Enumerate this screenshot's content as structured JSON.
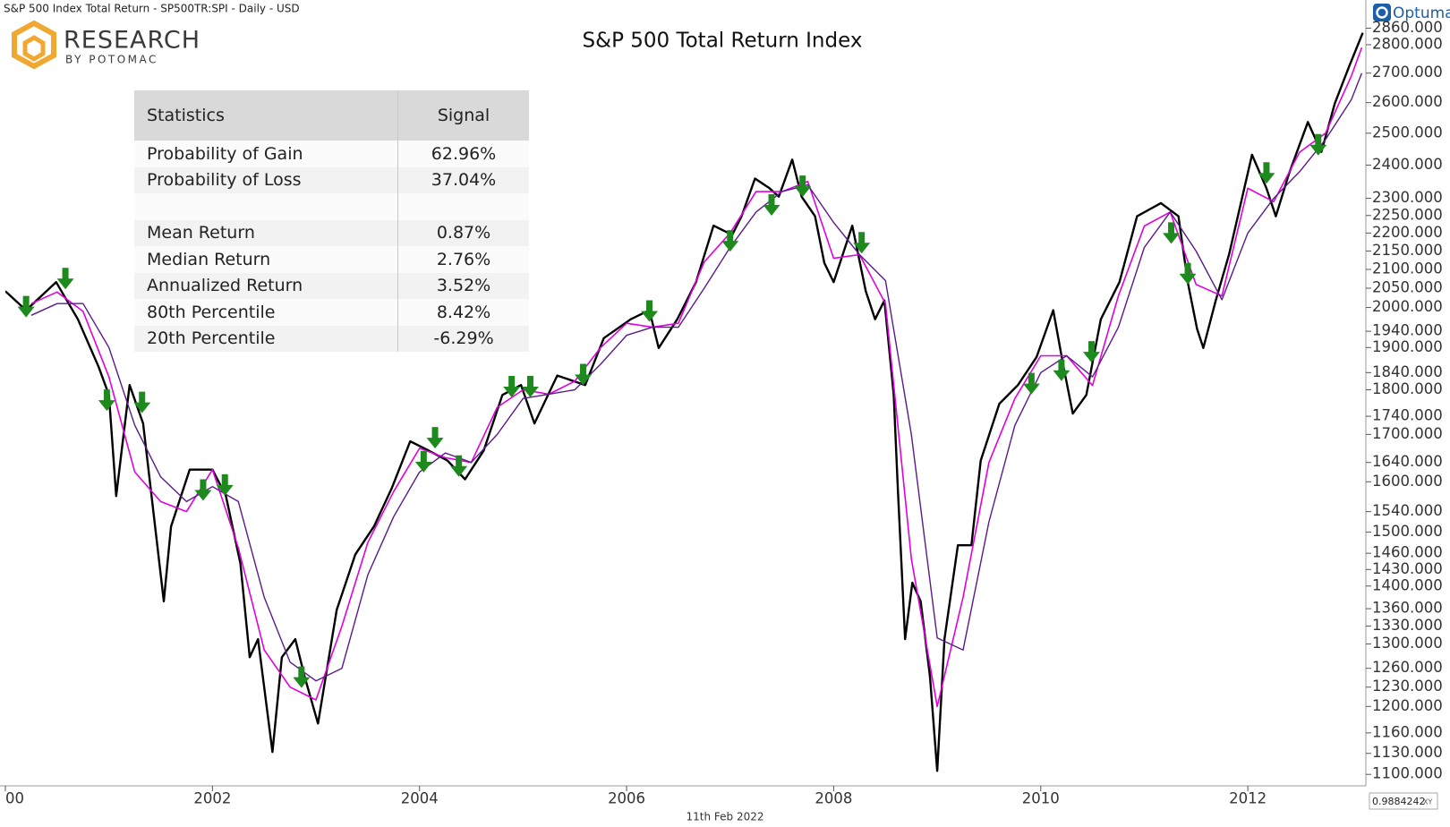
{
  "header": {
    "text": "S&P 500 Index Total Return - SP500TR:SPI - Daily - USD"
  },
  "logo": {
    "name": "RESEARCH",
    "tagline": "BY POTOMAC"
  },
  "brand": "Optuma",
  "footer": {
    "date": "11th Feb 2022",
    "scale": "0.9884242",
    "mode": "XY"
  },
  "table": {
    "columns": [
      "Statistics",
      "Signal"
    ],
    "rows": [
      [
        "Probability of Gain",
        "62.96%"
      ],
      [
        "Probability of Loss",
        "37.04%"
      ],
      [
        "Mean Return",
        "0.87%"
      ],
      [
        "Median Return",
        "2.76%"
      ],
      [
        "Annualized Return",
        "3.52%"
      ],
      [
        "80th Percentile",
        "8.42%"
      ],
      [
        "20th Percentile",
        "-6.29%"
      ]
    ]
  },
  "chart_data": {
    "type": "line",
    "title": "S&P 500 Total Return Index",
    "log_scale": true,
    "grid": false,
    "xlim": [
      2000.0,
      2013.14
    ],
    "ylim": [
      1084,
      2965
    ],
    "xticks": [
      {
        "value": 2000,
        "label": "00"
      },
      2002,
      2004,
      2006,
      2008,
      2010,
      2012
    ],
    "yticks": [
      {
        "value": 2860,
        "label": "2860.000"
      },
      {
        "value": 2800,
        "label": "2800.000"
      },
      {
        "value": 2700,
        "label": "2700.000"
      },
      {
        "value": 2600,
        "label": "2600.000"
      },
      {
        "value": 2500,
        "label": "2500.000"
      },
      {
        "value": 2400,
        "label": "2400.000"
      },
      {
        "value": 2300,
        "label": "2300.000"
      },
      {
        "value": 2250,
        "label": "2250.000"
      },
      {
        "value": 2200,
        "label": "2200.000"
      },
      {
        "value": 2150,
        "label": "2150.000"
      },
      {
        "value": 2100,
        "label": "2100.000"
      },
      {
        "value": 2050,
        "label": "2050.000"
      },
      {
        "value": 2000,
        "label": "2000.000"
      },
      {
        "value": 1940,
        "label": "1940.000"
      },
      {
        "value": 1900,
        "label": "1900.000"
      },
      {
        "value": 1840,
        "label": "1840.000"
      },
      {
        "value": 1800,
        "label": "1800.000"
      },
      {
        "value": 1740,
        "label": "1740.000"
      },
      {
        "value": 1700,
        "label": "1700.000"
      },
      {
        "value": 1640,
        "label": "1640.000"
      },
      {
        "value": 1600,
        "label": "1600.000"
      },
      {
        "value": 1540,
        "label": "1540.000"
      },
      {
        "value": 1500,
        "label": "1500.000"
      },
      {
        "value": 1460,
        "label": "1460.000"
      },
      {
        "value": 1430,
        "label": "1430.000"
      },
      {
        "value": 1400,
        "label": "1400.000"
      },
      {
        "value": 1360,
        "label": "1360.000"
      },
      {
        "value": 1330,
        "label": "1330.000"
      },
      {
        "value": 1300,
        "label": "1300.000"
      },
      {
        "value": 1260,
        "label": "1260.000"
      },
      {
        "value": 1230,
        "label": "1230.000"
      },
      {
        "value": 1200,
        "label": "1200.000"
      },
      {
        "value": 1160,
        "label": "1160.000"
      },
      {
        "value": 1130,
        "label": "1130.000"
      },
      {
        "value": 1100,
        "label": "1100.000"
      }
    ],
    "series": [
      {
        "color": "#000000",
        "width": 2.4,
        "x": [
          2000.0,
          2000.2,
          2000.49,
          2000.7,
          2000.9,
          2001.0,
          2001.07,
          2001.2,
          2001.33,
          2001.53,
          2001.6,
          2001.78,
          2002.0,
          2002.13,
          2002.27,
          2002.36,
          2002.44,
          2002.58,
          2002.67,
          2002.8,
          2002.89,
          2003.02,
          2003.2,
          2003.38,
          2003.56,
          2003.73,
          2003.91,
          2004.09,
          2004.27,
          2004.44,
          2004.62,
          2004.8,
          2004.98,
          2005.11,
          2005.33,
          2005.6,
          2005.78,
          2006.04,
          2006.22,
          2006.31,
          2006.49,
          2006.67,
          2006.84,
          2007.02,
          2007.11,
          2007.24,
          2007.38,
          2007.47,
          2007.6,
          2007.69,
          2007.82,
          2007.91,
          2008.0,
          2008.18,
          2008.31,
          2008.4,
          2008.49,
          2008.58,
          2008.62,
          2008.69,
          2008.76,
          2008.84,
          2008.93,
          2009.0,
          2009.07,
          2009.2,
          2009.33,
          2009.42,
          2009.6,
          2009.78,
          2009.96,
          2010.12,
          2010.22,
          2010.31,
          2010.44,
          2010.58,
          2010.76,
          2010.93,
          2011.16,
          2011.33,
          2011.42,
          2011.51,
          2011.57,
          2011.69,
          2011.82,
          2012.04,
          2012.18,
          2012.27,
          2012.4,
          2012.58,
          2012.71,
          2012.84,
          2012.98,
          2013.11
        ],
        "values": [
          2042,
          1993,
          2066,
          1970,
          1854,
          1788,
          1571,
          1811,
          1724,
          1373,
          1511,
          1625,
          1625,
          1571,
          1441,
          1278,
          1308,
          1132,
          1278,
          1308,
          1247,
          1174,
          1358,
          1458,
          1511,
          1586,
          1685,
          1665,
          1644,
          1605,
          1665,
          1788,
          1811,
          1724,
          1833,
          1811,
          1923,
          1970,
          1993,
          1899,
          1970,
          2066,
          2221,
          2195,
          2248,
          2359,
          2330,
          2305,
          2417,
          2305,
          2248,
          2117,
          2066,
          2221,
          2042,
          1970,
          2018,
          1788,
          1586,
          1308,
          1406,
          1373,
          1247,
          1105,
          1308,
          1475,
          1475,
          1644,
          1768,
          1811,
          1877,
          1993,
          1854,
          1746,
          1788,
          1970,
          2066,
          2248,
          2286,
          2248,
          2066,
          1946,
          1899,
          2018,
          2142,
          2432,
          2330,
          2248,
          2376,
          2536,
          2441,
          2597,
          2725,
          2843
        ]
      },
      {
        "color": "#e000e0",
        "width": 1.6,
        "x": [
          2000.25,
          2000.5,
          2000.75,
          2001.0,
          2001.25,
          2001.5,
          2001.75,
          2002.0,
          2002.25,
          2002.5,
          2002.75,
          2003.0,
          2003.25,
          2003.5,
          2003.75,
          2004.0,
          2004.25,
          2004.5,
          2004.75,
          2005.0,
          2005.25,
          2005.5,
          2005.75,
          2006.0,
          2006.25,
          2006.5,
          2006.75,
          2007.0,
          2007.25,
          2007.5,
          2007.75,
          2008.0,
          2008.25,
          2008.5,
          2008.75,
          2009.0,
          2009.25,
          2009.5,
          2009.75,
          2010.0,
          2010.25,
          2010.5,
          2010.75,
          2011.0,
          2011.25,
          2011.5,
          2011.75,
          2012.0,
          2012.25,
          2012.5,
          2012.75,
          2013.0,
          2013.1
        ],
        "values": [
          2010,
          2040,
          1990,
          1830,
          1620,
          1560,
          1540,
          1625,
          1470,
          1290,
          1230,
          1210,
          1330,
          1480,
          1580,
          1670,
          1650,
          1640,
          1760,
          1800,
          1790,
          1820,
          1900,
          1960,
          1950,
          1960,
          2120,
          2200,
          2320,
          2320,
          2350,
          2130,
          2140,
          2010,
          1450,
          1200,
          1380,
          1640,
          1780,
          1880,
          1880,
          1810,
          2030,
          2220,
          2260,
          2060,
          2030,
          2330,
          2290,
          2440,
          2500,
          2690,
          2790
        ]
      },
      {
        "color": "#5a1a8a",
        "width": 1.4,
        "x": [
          2000.25,
          2000.5,
          2000.75,
          2001.0,
          2001.25,
          2001.5,
          2001.75,
          2002.0,
          2002.25,
          2002.5,
          2002.75,
          2003.0,
          2003.25,
          2003.5,
          2003.75,
          2004.0,
          2004.25,
          2004.5,
          2004.75,
          2005.0,
          2005.25,
          2005.5,
          2005.75,
          2006.0,
          2006.25,
          2006.5,
          2006.75,
          2007.0,
          2007.25,
          2007.5,
          2007.75,
          2008.0,
          2008.25,
          2008.5,
          2008.75,
          2009.0,
          2009.25,
          2009.5,
          2009.75,
          2010.0,
          2010.25,
          2010.5,
          2010.75,
          2011.0,
          2011.25,
          2011.5,
          2011.75,
          2012.0,
          2012.25,
          2012.5,
          2012.75,
          2013.0,
          2013.1
        ],
        "values": [
          1980,
          2010,
          2010,
          1900,
          1720,
          1610,
          1560,
          1590,
          1560,
          1380,
          1270,
          1240,
          1260,
          1420,
          1530,
          1620,
          1660,
          1640,
          1700,
          1780,
          1790,
          1800,
          1860,
          1930,
          1950,
          1950,
          2050,
          2160,
          2260,
          2320,
          2340,
          2230,
          2140,
          2070,
          1700,
          1310,
          1290,
          1520,
          1720,
          1840,
          1880,
          1830,
          1950,
          2160,
          2260,
          2150,
          2020,
          2200,
          2300,
          2380,
          2480,
          2610,
          2700
        ]
      }
    ],
    "signals": {
      "color": "#1e8a1e",
      "x": [
        2000.2,
        2000.58,
        2000.98,
        2001.32,
        2001.91,
        2002.12,
        2002.86,
        2004.04,
        2004.15,
        2004.38,
        2004.89,
        2005.07,
        2005.58,
        2006.22,
        2007.0,
        2007.4,
        2007.7,
        2008.27,
        2009.91,
        2010.2,
        2010.49,
        2011.26,
        2011.42,
        2012.18,
        2012.68
      ],
      "values": [
        1993,
        2066,
        1768,
        1763,
        1576,
        1586,
        1240,
        1634,
        1685,
        1625,
        1799,
        1799,
        1827,
        1982,
        2168,
        2270,
        2325,
        2163,
        1806,
        1837,
        1881,
        2190,
        2079,
        2365,
        2452
      ]
    }
  }
}
